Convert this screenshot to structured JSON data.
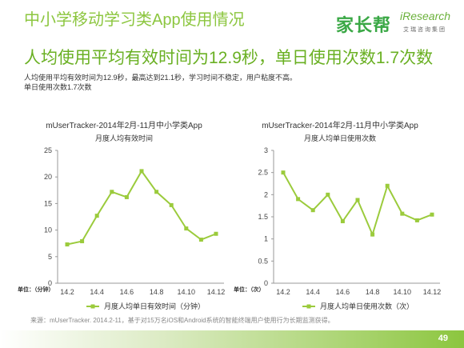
{
  "title": "中小学移动学习类App使用情况",
  "subtitle": "人均使用平均有效时间为12.9秒，单日使用次数1.7次数",
  "logos": {
    "jiazhangbang": "家长帮",
    "iresearch": "iResearch",
    "iresearch_sub": "艾瑞咨询集团"
  },
  "description": [
    "人均使用平均有效时间为12.9秒，最高达到21.1秒，学习时间不稳定，用户粘度不高。",
    "单日使用次数1.7次数"
  ],
  "source": "来源：mUserTracker. 2014.2-11，基于对15万名iOS和Android系统的智能终端用户使用行为长期监测获得。",
  "page_number": "49",
  "colors": {
    "accent": "#8cc63f",
    "line": "#9bcb3c"
  },
  "chart_data": [
    {
      "type": "line",
      "title": "mUserTracker-2014年2月-11月中小学类App",
      "subtitle": "月度人均有效时间",
      "unit_label": "单位：（分钟）",
      "categories": [
        "14.2",
        "14.3",
        "14.4",
        "14.5",
        "14.6",
        "14.7",
        "14.8",
        "14.9",
        "14.10",
        "14.11",
        "14.12"
      ],
      "x_tick_labels": [
        "14.2",
        "14.4",
        "14.6",
        "14.8",
        "14.10",
        "14.12"
      ],
      "series": [
        {
          "name": "月度人均单日有效时间（分钟）",
          "values": [
            7.3,
            7.9,
            12.7,
            17.2,
            16.2,
            21.1,
            17.2,
            14.7,
            10.3,
            8.2,
            9.3
          ]
        }
      ],
      "ylim": [
        0,
        25
      ],
      "yticks": [
        0,
        5,
        10,
        15,
        20,
        25
      ],
      "legend": "bottom"
    },
    {
      "type": "line",
      "title": "mUserTracker-2014年2月-11月中小学类App",
      "subtitle": "月度人均单日使用次数",
      "unit_label": "单位：（次）",
      "categories": [
        "14.2",
        "14.3",
        "14.4",
        "14.5",
        "14.6",
        "14.7",
        "14.8",
        "14.9",
        "14.10",
        "14.11",
        "14.12"
      ],
      "x_tick_labels": [
        "14.2",
        "14.4",
        "14.6",
        "14.8",
        "14.10",
        "14.12"
      ],
      "series": [
        {
          "name": "月度人均单日使用次数（次）",
          "values": [
            2.5,
            1.9,
            1.65,
            2.0,
            1.4,
            1.88,
            1.1,
            2.2,
            1.57,
            1.42,
            1.55
          ]
        }
      ],
      "ylim": [
        0,
        3
      ],
      "yticks": [
        0,
        0.5,
        1,
        1.5,
        2,
        2.5,
        3
      ],
      "legend": "bottom"
    }
  ]
}
